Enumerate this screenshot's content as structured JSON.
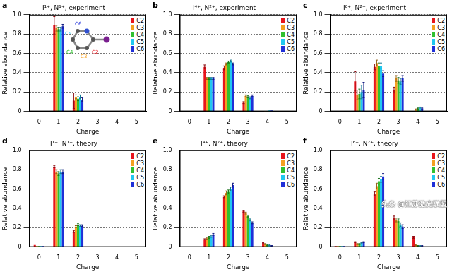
{
  "chart_data": [
    {
      "type": "bar",
      "panel": "a",
      "title": "I¹⁺, N¹⁺, experiment",
      "x_label": "Charge",
      "y_label": "Relative abundance",
      "categories": [
        0,
        1,
        2,
        3,
        4,
        5
      ],
      "ylim": [
        0,
        1
      ],
      "yticks": [
        0,
        0.2,
        0.4,
        0.6,
        0.8,
        {
          "value": 1,
          "label": "1.0"
        }
      ],
      "grid": true,
      "legend": "upper right",
      "inset_labels": [
        "C2",
        "C3",
        "C4",
        "C5",
        "C6"
      ],
      "series": [
        {
          "name": "C2",
          "color": "#e8141c",
          "values": [
            0,
            0.89,
            0.11,
            0,
            0,
            0
          ],
          "errors": [
            0,
            0.09,
            0.08,
            0,
            0,
            0
          ]
        },
        {
          "name": "C3",
          "color": "#f5a020",
          "values": [
            0,
            0.86,
            0.15,
            0,
            0,
            0
          ],
          "errors": [
            0,
            0.03,
            0.02,
            0,
            0,
            0
          ]
        },
        {
          "name": "C4",
          "color": "#30c030",
          "values": [
            0,
            0.85,
            0.13,
            0,
            0,
            0
          ],
          "errors": [
            0,
            0.02,
            0.02,
            0,
            0,
            0
          ]
        },
        {
          "name": "C5",
          "color": "#20c8f0",
          "values": [
            0,
            0.85,
            0.15,
            0,
            0,
            0
          ],
          "errors": [
            0,
            0.02,
            0.02,
            0,
            0,
            0
          ]
        },
        {
          "name": "C6",
          "color": "#1f2fd8",
          "values": [
            0,
            0.88,
            0.12,
            0,
            0,
            0
          ],
          "errors": [
            0,
            0.02,
            0.02,
            0,
            0,
            0
          ]
        }
      ]
    },
    {
      "type": "bar",
      "panel": "b",
      "title": "I⁴⁺, N²⁺, experiment",
      "x_label": "Charge",
      "y_label": "Relative abundance",
      "categories": [
        0,
        1,
        2,
        3,
        4,
        5
      ],
      "ylim": [
        0,
        1
      ],
      "yticks": [
        0,
        0.2,
        0.4,
        0.6,
        0.8,
        {
          "value": 1,
          "label": "1.0"
        }
      ],
      "grid": true,
      "legend": "upper right",
      "series": [
        {
          "name": "C2",
          "color": "#e8141c",
          "values": [
            0,
            0.46,
            0.45,
            0.09,
            0,
            0
          ],
          "errors": [
            0,
            0.02,
            0.02,
            0.01,
            0,
            0
          ]
        },
        {
          "name": "C3",
          "color": "#f5a020",
          "values": [
            0,
            0.34,
            0.49,
            0.16,
            0.005,
            0
          ],
          "errors": [
            0,
            0.01,
            0.01,
            0.01,
            0,
            0
          ]
        },
        {
          "name": "C4",
          "color": "#30c030",
          "values": [
            0,
            0.34,
            0.51,
            0.15,
            0.005,
            0
          ],
          "errors": [
            0,
            0.01,
            0.01,
            0.01,
            0,
            0
          ]
        },
        {
          "name": "C5",
          "color": "#20c8f0",
          "values": [
            0,
            0.34,
            0.52,
            0.14,
            0.01,
            0
          ],
          "errors": [
            0,
            0.01,
            0.01,
            0.01,
            0,
            0
          ]
        },
        {
          "name": "C6",
          "color": "#1f2fd8",
          "values": [
            0,
            0.34,
            0.49,
            0.16,
            0.01,
            0
          ],
          "errors": [
            0,
            0.01,
            0.01,
            0.01,
            0,
            0
          ]
        }
      ]
    },
    {
      "type": "bar",
      "panel": "c",
      "title": "I⁶⁺, N²⁺, experiment",
      "x_label": "Charge",
      "y_label": "Relative abundance",
      "categories": [
        0,
        1,
        2,
        3,
        4,
        5
      ],
      "ylim": [
        0,
        1
      ],
      "yticks": [
        0,
        0.2,
        0.4,
        0.6,
        0.8,
        {
          "value": 1,
          "label": "1.0"
        }
      ],
      "grid": true,
      "legend": "upper right",
      "series": [
        {
          "name": "C2",
          "color": "#e8141c",
          "values": [
            0,
            0.31,
            0.46,
            0.22,
            0,
            0
          ],
          "errors": [
            0,
            0.1,
            0.03,
            0.03,
            0,
            0
          ]
        },
        {
          "name": "C3",
          "color": "#f5a020",
          "values": [
            0,
            0.17,
            0.5,
            0.34,
            0.02,
            0
          ],
          "errors": [
            0,
            0.05,
            0.03,
            0.03,
            0.005,
            0
          ]
        },
        {
          "name": "C4",
          "color": "#30c030",
          "values": [
            0,
            0.18,
            0.47,
            0.32,
            0.03,
            0
          ],
          "errors": [
            0,
            0.05,
            0.03,
            0.03,
            0.005,
            0
          ]
        },
        {
          "name": "C5",
          "color": "#20c8f0",
          "values": [
            0,
            0.2,
            0.47,
            0.31,
            0.04,
            0
          ],
          "errors": [
            0,
            0.07,
            0.03,
            0.03,
            0.005,
            0
          ]
        },
        {
          "name": "C6",
          "color": "#1f2fd8",
          "values": [
            0,
            0.22,
            0.39,
            0.34,
            0.03,
            0
          ],
          "errors": [
            0,
            0.08,
            0.03,
            0.03,
            0.005,
            0
          ]
        }
      ]
    },
    {
      "type": "bar",
      "panel": "d",
      "title": "I¹⁺, N¹⁺, theory",
      "x_label": "Charge",
      "y_label": "Relative abundance",
      "categories": [
        0,
        1,
        2,
        3,
        4,
        5
      ],
      "ylim": [
        0,
        1
      ],
      "yticks": [
        0,
        0.2,
        0.4,
        0.6,
        0.8,
        {
          "value": 1,
          "label": "1.0"
        }
      ],
      "grid": true,
      "legend": "upper right",
      "series": [
        {
          "name": "C2",
          "color": "#e8141c",
          "values": [
            0.02,
            0.83,
            0.16,
            0,
            0,
            0
          ],
          "errors": [
            0,
            0.01,
            0.01,
            0,
            0,
            0
          ]
        },
        {
          "name": "C3",
          "color": "#f5a020",
          "values": [
            0.01,
            0.78,
            0.21,
            0.005,
            0,
            0
          ],
          "errors": [
            0,
            0.02,
            0.01,
            0,
            0,
            0
          ]
        },
        {
          "name": "C4",
          "color": "#30c030",
          "values": [
            0.01,
            0.76,
            0.23,
            0.005,
            0,
            0
          ],
          "errors": [
            0,
            0.02,
            0.01,
            0,
            0,
            0
          ]
        },
        {
          "name": "C5",
          "color": "#20c8f0",
          "values": [
            0.01,
            0.78,
            0.22,
            0.005,
            0,
            0
          ],
          "errors": [
            0,
            0.02,
            0.01,
            0,
            0,
            0
          ]
        },
        {
          "name": "C6",
          "color": "#1f2fd8",
          "values": [
            0.01,
            0.78,
            0.22,
            0.005,
            0,
            0
          ],
          "errors": [
            0,
            0.02,
            0.01,
            0,
            0,
            0
          ]
        }
      ]
    },
    {
      "type": "bar",
      "panel": "e",
      "title": "I⁴⁺, N²⁺, theory",
      "x_label": "Charge",
      "y_label": "Relative abundance",
      "categories": [
        0,
        1,
        2,
        3,
        4,
        5
      ],
      "ylim": [
        0,
        1
      ],
      "yticks": [
        0,
        0.2,
        0.4,
        0.6,
        0.8,
        {
          "value": 1,
          "label": "1.0"
        }
      ],
      "grid": true,
      "legend": "upper right",
      "series": [
        {
          "name": "C2",
          "color": "#e8141c",
          "values": [
            0.005,
            0.08,
            0.52,
            0.37,
            0.04,
            0
          ],
          "errors": [
            0,
            0.005,
            0.01,
            0.01,
            0.005,
            0
          ]
        },
        {
          "name": "C3",
          "color": "#f5a020",
          "values": [
            0.005,
            0.09,
            0.56,
            0.35,
            0.03,
            0
          ],
          "errors": [
            0,
            0.01,
            0.02,
            0.01,
            0.005,
            0
          ]
        },
        {
          "name": "C4",
          "color": "#30c030",
          "values": [
            0.005,
            0.1,
            0.57,
            0.32,
            0.02,
            0
          ],
          "errors": [
            0,
            0.01,
            0.02,
            0.01,
            0.005,
            0
          ]
        },
        {
          "name": "C5",
          "color": "#20c8f0",
          "values": [
            0.005,
            0.11,
            0.6,
            0.28,
            0.02,
            0
          ],
          "errors": [
            0,
            0.01,
            0.02,
            0.01,
            0.005,
            0
          ]
        },
        {
          "name": "C6",
          "color": "#1f2fd8",
          "values": [
            0.005,
            0.13,
            0.64,
            0.25,
            0.01,
            0
          ],
          "errors": [
            0,
            0.01,
            0.02,
            0.01,
            0.005,
            0
          ]
        }
      ]
    },
    {
      "type": "bar",
      "panel": "f",
      "title": "I⁶⁺, N²⁺, theory",
      "x_label": "Charge",
      "y_label": "Relative abundance",
      "categories": [
        0,
        1,
        2,
        3,
        4,
        5
      ],
      "ylim": [
        0,
        1
      ],
      "yticks": [
        0,
        0.2,
        0.4,
        0.6,
        0.8,
        {
          "value": 1,
          "label": "1.0"
        }
      ],
      "grid": true,
      "legend": "upper right",
      "series": [
        {
          "name": "C2",
          "color": "#e8141c",
          "values": [
            0.01,
            0.05,
            0.55,
            0.3,
            0.1,
            0
          ],
          "errors": [
            0,
            0.005,
            0.02,
            0.02,
            0.01,
            0
          ]
        },
        {
          "name": "C3",
          "color": "#f5a020",
          "values": [
            0.01,
            0.03,
            0.63,
            0.28,
            0.02,
            0
          ],
          "errors": [
            0,
            0.005,
            0.03,
            0.02,
            0.005,
            0
          ]
        },
        {
          "name": "C4",
          "color": "#30c030",
          "values": [
            0.01,
            0.03,
            0.68,
            0.27,
            0.01,
            0
          ],
          "errors": [
            0,
            0.005,
            0.03,
            0.02,
            0.005,
            0
          ]
        },
        {
          "name": "C5",
          "color": "#20c8f0",
          "values": [
            0.01,
            0.04,
            0.7,
            0.23,
            0.01,
            0
          ],
          "errors": [
            0,
            0.005,
            0.03,
            0.02,
            0.005,
            0
          ]
        },
        {
          "name": "C6",
          "color": "#1f2fd8",
          "values": [
            0.01,
            0.05,
            0.73,
            0.21,
            0.01,
            0
          ],
          "errors": [
            0,
            0.005,
            0.03,
            0.02,
            0.005,
            0
          ]
        }
      ]
    }
  ],
  "watermark": "头条 @江苏激光联盟"
}
